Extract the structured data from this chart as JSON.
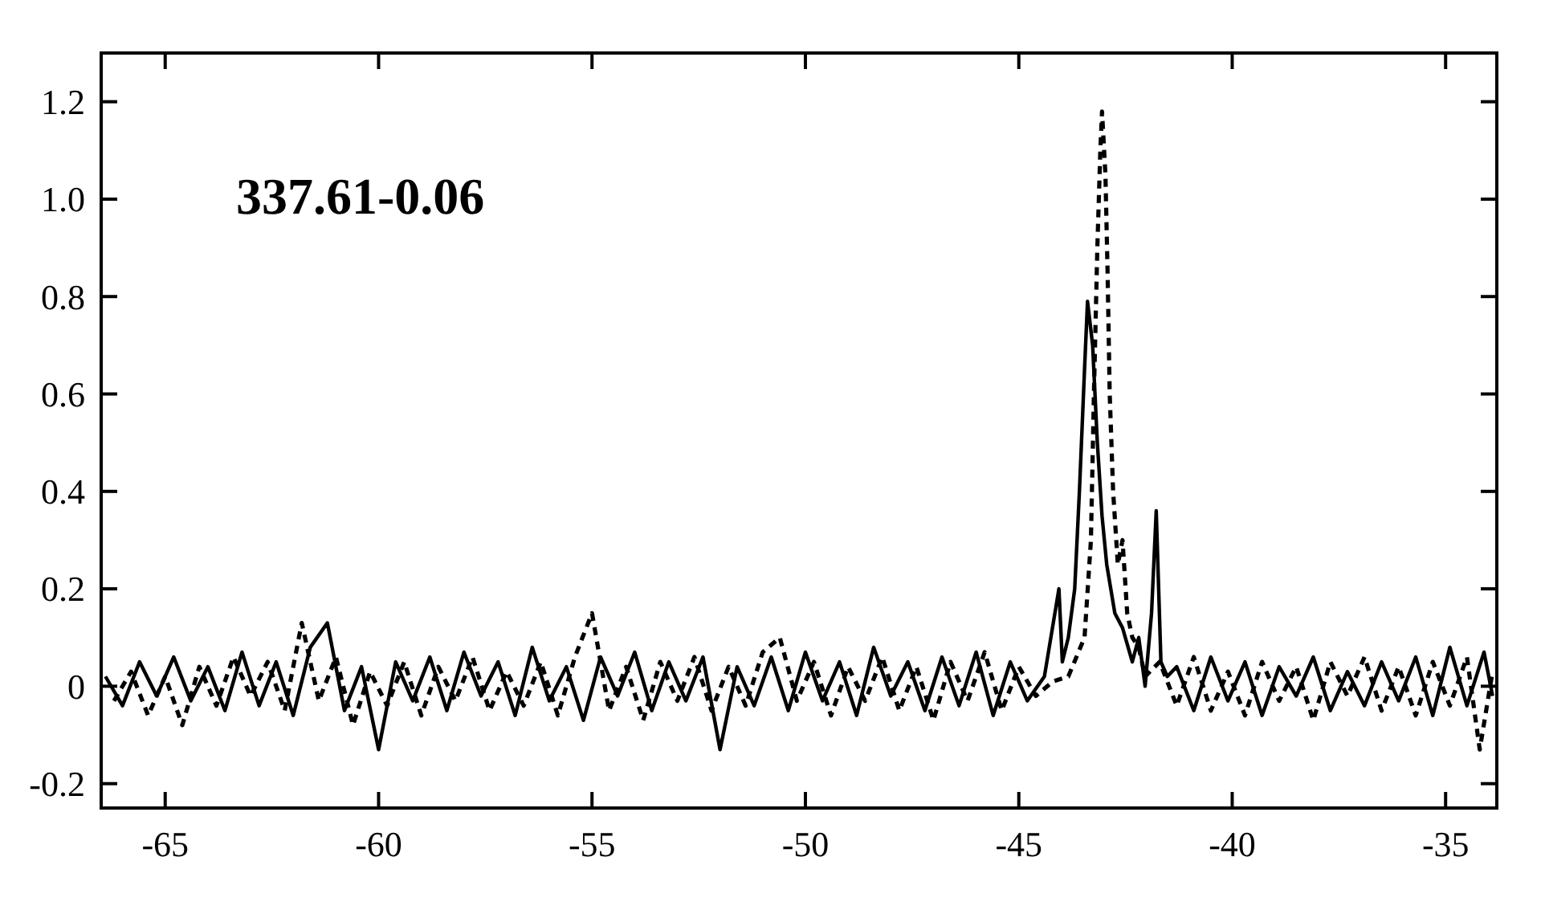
{
  "chart_data": {
    "type": "line",
    "annotations": [
      "337.61-0.06"
    ],
    "xlim": [
      -66.5,
      -33.8
    ],
    "ylim": [
      -0.25,
      1.3
    ],
    "xticks": [
      -65,
      -60,
      -55,
      -50,
      -45,
      -40,
      -35
    ],
    "yticks": [
      {
        "value": -0.2,
        "label": "-0.2"
      },
      0,
      {
        "value": 0.2,
        "label": "0.2"
      },
      {
        "value": 0.4,
        "label": "0.4"
      },
      {
        "value": 0.6,
        "label": "0.6"
      },
      {
        "value": 0.8,
        "label": "0.8"
      },
      {
        "value": 1,
        "label": "1.0"
      },
      {
        "value": 1.2,
        "label": "1.2"
      }
    ],
    "grid": false,
    "series": [
      {
        "color": "#000000",
        "line_style": "solid",
        "x": [
          -66.4,
          -66.0,
          -65.6,
          -65.2,
          -64.8,
          -64.4,
          -64.0,
          -63.6,
          -63.2,
          -62.8,
          -62.4,
          -62.0,
          -61.6,
          -61.2,
          -60.8,
          -60.4,
          -60.0,
          -59.6,
          -59.2,
          -58.8,
          -58.4,
          -58.0,
          -57.6,
          -57.2,
          -56.8,
          -56.4,
          -56.0,
          -55.6,
          -55.2,
          -54.8,
          -54.4,
          -54.0,
          -53.6,
          -53.2,
          -52.8,
          -52.4,
          -52.0,
          -51.6,
          -51.2,
          -50.8,
          -50.4,
          -50.0,
          -49.6,
          -49.2,
          -48.8,
          -48.4,
          -48.0,
          -47.6,
          -47.2,
          -46.8,
          -46.4,
          -46.0,
          -45.6,
          -45.2,
          -44.8,
          -44.4,
          -44.06,
          -43.98,
          -43.84,
          -43.69,
          -43.58,
          -43.46,
          -43.39,
          -43.27,
          -43.16,
          -43.05,
          -42.94,
          -42.75,
          -42.57,
          -42.34,
          -42.19,
          -42.04,
          -41.89,
          -41.78,
          -41.67,
          -41.52,
          -41.3,
          -40.9,
          -40.5,
          -40.1,
          -39.7,
          -39.3,
          -38.9,
          -38.5,
          -38.1,
          -37.7,
          -37.3,
          -36.9,
          -36.5,
          -36.1,
          -35.7,
          -35.3,
          -34.9,
          -34.5,
          -34.1,
          -33.9
        ],
        "values": [
          0.02,
          -0.04,
          0.05,
          -0.02,
          0.06,
          -0.03,
          0.04,
          -0.05,
          0.07,
          -0.04,
          0.05,
          -0.06,
          0.08,
          0.13,
          -0.05,
          0.04,
          -0.13,
          0.05,
          -0.03,
          0.06,
          -0.05,
          0.07,
          -0.02,
          0.05,
          -0.06,
          0.08,
          -0.03,
          0.04,
          -0.07,
          0.06,
          -0.02,
          0.07,
          -0.05,
          0.05,
          -0.03,
          0.06,
          -0.13,
          0.04,
          -0.04,
          0.06,
          -0.05,
          0.07,
          -0.03,
          0.05,
          -0.06,
          0.08,
          -0.02,
          0.05,
          -0.05,
          0.06,
          -0.04,
          0.07,
          -0.06,
          0.05,
          -0.03,
          0.02,
          0.2,
          0.05,
          0.1,
          0.2,
          0.4,
          0.65,
          0.79,
          0.7,
          0.5,
          0.35,
          0.25,
          0.15,
          0.12,
          0.05,
          0.1,
          0.0,
          0.15,
          0.36,
          0.05,
          0.02,
          0.04,
          -0.05,
          0.06,
          -0.03,
          0.05,
          -0.06,
          0.04,
          -0.02,
          0.06,
          -0.05,
          0.03,
          -0.04,
          0.05,
          -0.03,
          0.06,
          -0.06,
          0.08,
          -0.04,
          0.07,
          -0.02
        ]
      },
      {
        "color": "#000000",
        "line_style": "dashed",
        "x": [
          -66.2,
          -65.8,
          -65.4,
          -65.0,
          -64.6,
          -64.2,
          -63.8,
          -63.4,
          -63.0,
          -62.6,
          -62.2,
          -61.8,
          -61.4,
          -61.0,
          -60.6,
          -60.2,
          -59.8,
          -59.4,
          -59.0,
          -58.6,
          -58.2,
          -57.8,
          -57.4,
          -57.0,
          -56.6,
          -56.2,
          -55.8,
          -55.4,
          -55.0,
          -54.6,
          -54.2,
          -53.8,
          -53.4,
          -53.0,
          -52.6,
          -52.2,
          -51.8,
          -51.4,
          -51.0,
          -50.6,
          -50.2,
          -49.8,
          -49.4,
          -49.0,
          -48.6,
          -48.2,
          -47.8,
          -47.4,
          -47.0,
          -46.6,
          -46.2,
          -45.8,
          -45.4,
          -45.0,
          -44.6,
          -44.2,
          -43.84,
          -43.46,
          -43.31,
          -43.24,
          -43.16,
          -43.09,
          -43.05,
          -42.97,
          -42.92,
          -42.87,
          -42.79,
          -42.68,
          -42.57,
          -42.46,
          -42.34,
          -42.19,
          -42.04,
          -41.7,
          -41.3,
          -40.9,
          -40.5,
          -40.1,
          -39.7,
          -39.3,
          -38.9,
          -38.5,
          -38.1,
          -37.7,
          -37.3,
          -36.9,
          -36.5,
          -36.1,
          -35.7,
          -35.3,
          -34.9,
          -34.5,
          -34.2,
          -33.9
        ],
        "values": [
          -0.03,
          0.03,
          -0.06,
          0.02,
          -0.08,
          0.04,
          -0.04,
          0.06,
          -0.02,
          0.05,
          -0.05,
          0.13,
          -0.03,
          0.06,
          -0.08,
          0.03,
          -0.04,
          0.05,
          -0.06,
          0.04,
          -0.03,
          0.06,
          -0.05,
          0.03,
          -0.04,
          0.05,
          -0.06,
          0.06,
          0.15,
          -0.05,
          0.04,
          -0.07,
          0.05,
          -0.03,
          0.06,
          -0.05,
          0.04,
          -0.04,
          0.07,
          0.1,
          -0.03,
          0.05,
          -0.06,
          0.04,
          -0.03,
          0.06,
          -0.05,
          0.04,
          -0.07,
          0.05,
          -0.03,
          0.07,
          -0.05,
          0.04,
          -0.02,
          0.01,
          0.02,
          0.1,
          0.3,
          0.6,
          0.9,
          1.1,
          1.18,
          1.05,
          0.85,
          0.6,
          0.4,
          0.25,
          0.3,
          0.15,
          0.1,
          0.08,
          0.02,
          0.05,
          -0.04,
          0.06,
          -0.05,
          0.03,
          -0.06,
          0.05,
          -0.03,
          0.04,
          -0.07,
          0.05,
          -0.02,
          0.06,
          -0.05,
          0.04,
          -0.06,
          0.05,
          -0.04,
          0.06,
          -0.13,
          0.03
        ]
      }
    ]
  }
}
